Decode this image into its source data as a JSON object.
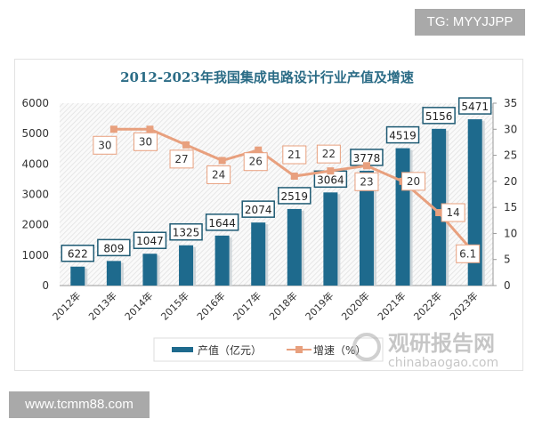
{
  "badges": {
    "top": "TG: MYYJJPP",
    "bottom": "www.tcmm88.com"
  },
  "watermark": {
    "cn": "观研报告网",
    "en": "chinabaogao.com"
  },
  "chart_data": {
    "type": "bar+line",
    "title": "2012-2023年我国集成电路设计行业产值及增速",
    "categories": [
      "2012年",
      "2013年",
      "2014年",
      "2015年",
      "2016年",
      "2017年",
      "2018年",
      "2019年",
      "2020年",
      "2021年",
      "2022年",
      "2023年"
    ],
    "series": [
      {
        "name": "产值（亿元）",
        "type": "bar",
        "axis": "left",
        "color": "#1e6a8d",
        "values": [
          622,
          809,
          1047,
          1325,
          1644,
          2074,
          2519,
          3064,
          3778,
          4519,
          5156,
          5471
        ]
      },
      {
        "name": "增速（%）",
        "type": "line",
        "axis": "right",
        "color": "#e8a07e",
        "values": [
          null,
          30,
          30,
          27,
          24,
          26,
          21,
          22,
          23,
          20,
          14,
          6.1
        ]
      }
    ],
    "ylim_left": [
      0,
      6000
    ],
    "yticks_left": [
      0,
      1000,
      2000,
      3000,
      4000,
      5000,
      6000
    ],
    "ylim_right": [
      0,
      35
    ],
    "yticks_right": [
      0,
      5,
      10,
      15,
      20,
      25,
      30,
      35
    ],
    "legend": "bottom"
  }
}
